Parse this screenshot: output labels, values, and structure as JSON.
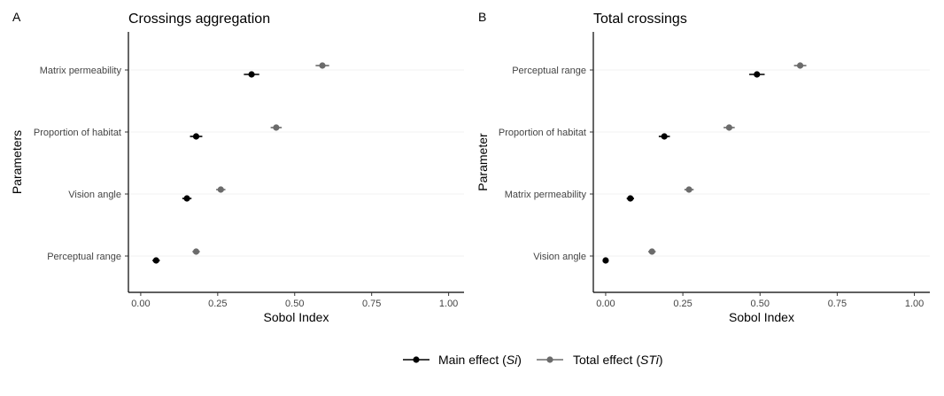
{
  "chart_data": [
    {
      "type": "scatter",
      "panel_tag": "A",
      "title": "Crossings aggregation",
      "xlabel": "Sobol Index",
      "ylabel": "Parameters",
      "xlim": [
        -0.04,
        1.05
      ],
      "xticks": [
        "0.00",
        "0.25",
        "0.50",
        "0.75",
        "1.00"
      ],
      "categories": [
        "Matrix permeability",
        "Proportion of habitat",
        "Vision angle",
        "Perceptual range"
      ],
      "series": [
        {
          "name": "Main effect (Si)",
          "values": [
            0.36,
            0.18,
            0.15,
            0.05
          ],
          "errors": [
            0.025,
            0.02,
            0.015,
            0.012
          ]
        },
        {
          "name": "Total effect (STi)",
          "values": [
            0.59,
            0.44,
            0.26,
            0.18
          ],
          "errors": [
            0.022,
            0.018,
            0.015,
            0.012
          ]
        }
      ],
      "grid": "horizontal-major-faint"
    },
    {
      "type": "scatter",
      "panel_tag": "B",
      "title": "Total crossings",
      "xlabel": "Sobol Index",
      "ylabel": "Parameter",
      "xlim": [
        -0.04,
        1.05
      ],
      "xticks": [
        "0.00",
        "0.25",
        "0.50",
        "0.75",
        "1.00"
      ],
      "categories": [
        "Perceptual range",
        "Proportion of habitat",
        "Matrix permeability",
        "Vision angle"
      ],
      "series": [
        {
          "name": "Main effect (Si)",
          "values": [
            0.49,
            0.19,
            0.08,
            0.0
          ],
          "errors": [
            0.025,
            0.018,
            0.012,
            0.008
          ]
        },
        {
          "name": "Total effect (STi)",
          "values": [
            0.63,
            0.4,
            0.27,
            0.15
          ],
          "errors": [
            0.02,
            0.018,
            0.015,
            0.012
          ]
        }
      ],
      "grid": "horizontal-major-faint"
    }
  ],
  "legend": {
    "placement": "bottom",
    "items": [
      {
        "label_prefix": "Main effect (",
        "label_italic": "Si",
        "label_suffix": ")",
        "color": "#000000"
      },
      {
        "label_prefix": "Total effect (",
        "label_italic": "STi",
        "label_suffix": ")",
        "color": "#6b6b6b"
      }
    ]
  },
  "colors": {
    "main": "#000000",
    "total": "#6b6b6b",
    "grid": "#f2f2f2"
  }
}
